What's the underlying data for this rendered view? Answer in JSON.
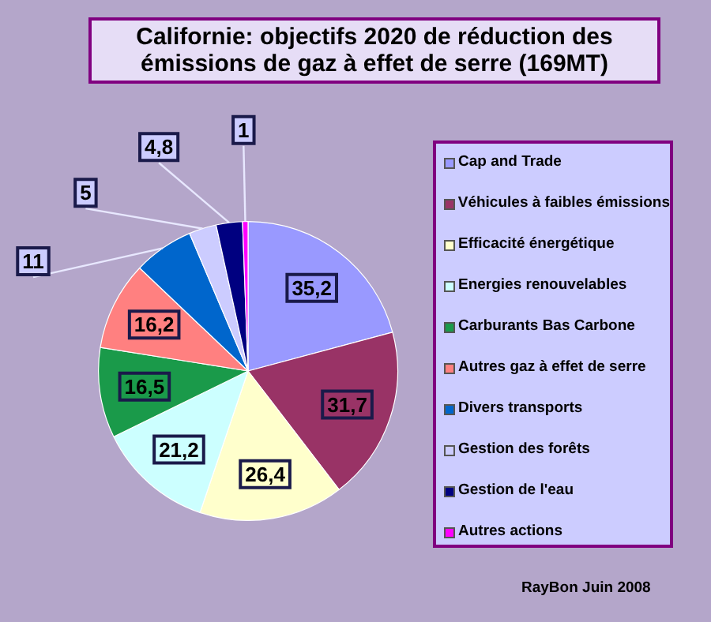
{
  "chart_data": {
    "type": "pie",
    "title": "Californie: objectifs 2020 de réduction des émissions de gaz à effet de serre (169MT)",
    "categories": [
      "Cap and Trade",
      "Véhicules à faibles émissions",
      "Efficacité énergétique",
      "Energies renouvelables",
      "Carburants Bas Carbone",
      "Autres gaz à effet de serre",
      "Divers transports",
      "Gestion des forêts",
      "Gestion de l'eau",
      "Autres actions"
    ],
    "values": [
      35.2,
      31.7,
      26.4,
      21.2,
      16.5,
      16.2,
      11,
      5,
      4.8,
      1
    ],
    "value_labels": [
      "35,2",
      "31,7",
      "26,4",
      "21,2",
      "16,5",
      "16,2",
      "11",
      "5",
      "4,8",
      "1"
    ],
    "colors": [
      "#9999ff",
      "#993366",
      "#ffffcc",
      "#ccffff",
      "#1a9a4a",
      "#ff8080",
      "#0066cc",
      "#ccccff",
      "#000080",
      "#ff00ff"
    ],
    "legend": "right",
    "annotations": [
      "RayBon Juin 2008"
    ]
  }
}
